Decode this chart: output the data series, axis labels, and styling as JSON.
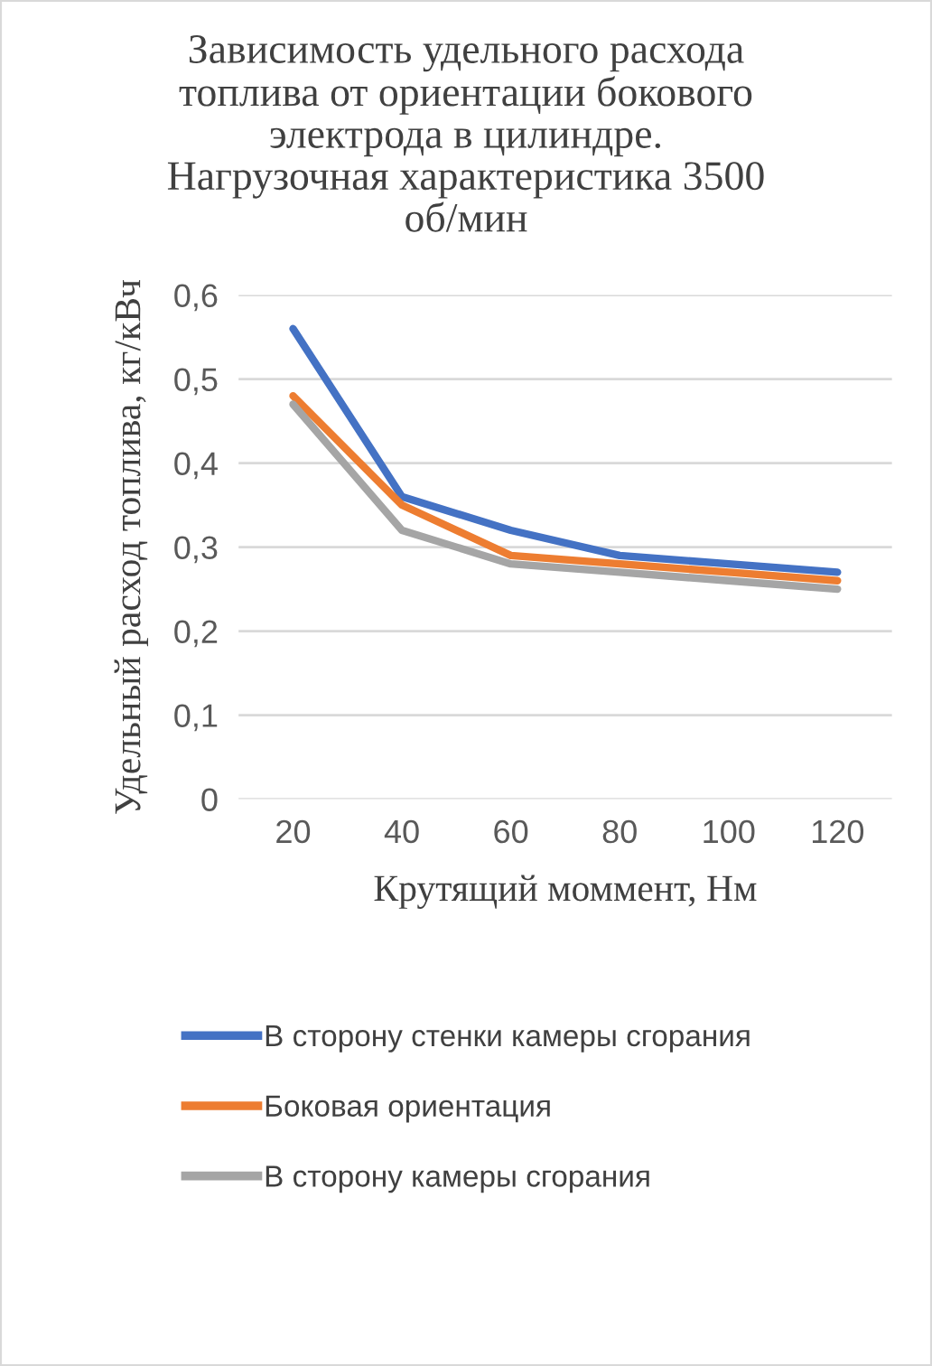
{
  "chart_data": {
    "type": "line",
    "title": "Зависимость удельного расхода\nтоплива от ориентации бокового\nэлектрода в цилиндре.\nНагрузочная характеристика 3500\nоб/мин",
    "xlabel": "Крутящий моммент, Нм",
    "ylabel": "Удельный расход топлива, кг/кВч",
    "categories": [
      "20",
      "40",
      "60",
      "80",
      "100",
      "120"
    ],
    "series": [
      {
        "name": "В сторону стенки камеры сгорания",
        "color": "#4472c4",
        "values": [
          0.56,
          0.36,
          0.32,
          0.29,
          0.28,
          0.27
        ]
      },
      {
        "name": "Боковая ориентация",
        "color": "#ed7d31",
        "values": [
          0.48,
          0.35,
          0.29,
          0.28,
          0.27,
          0.26
        ]
      },
      {
        "name": "В сторону камеры сгорания",
        "color": "#a5a5a5",
        "values": [
          0.47,
          0.32,
          0.28,
          0.27,
          0.26,
          0.25
        ]
      }
    ],
    "ylim": [
      0,
      0.6
    ],
    "yticks": [
      0,
      {
        "value": 0.1,
        "label": "0,1"
      },
      {
        "value": 0.2,
        "label": "0,2"
      },
      {
        "value": 0.3,
        "label": "0,3"
      },
      {
        "value": 0.4,
        "label": "0,4"
      },
      {
        "value": 0.5,
        "label": "0,5"
      },
      {
        "value": 0.6,
        "label": "0,6"
      }
    ],
    "grid": "y",
    "legend": "bottom",
    "marker": "none",
    "line_style": "solid"
  }
}
